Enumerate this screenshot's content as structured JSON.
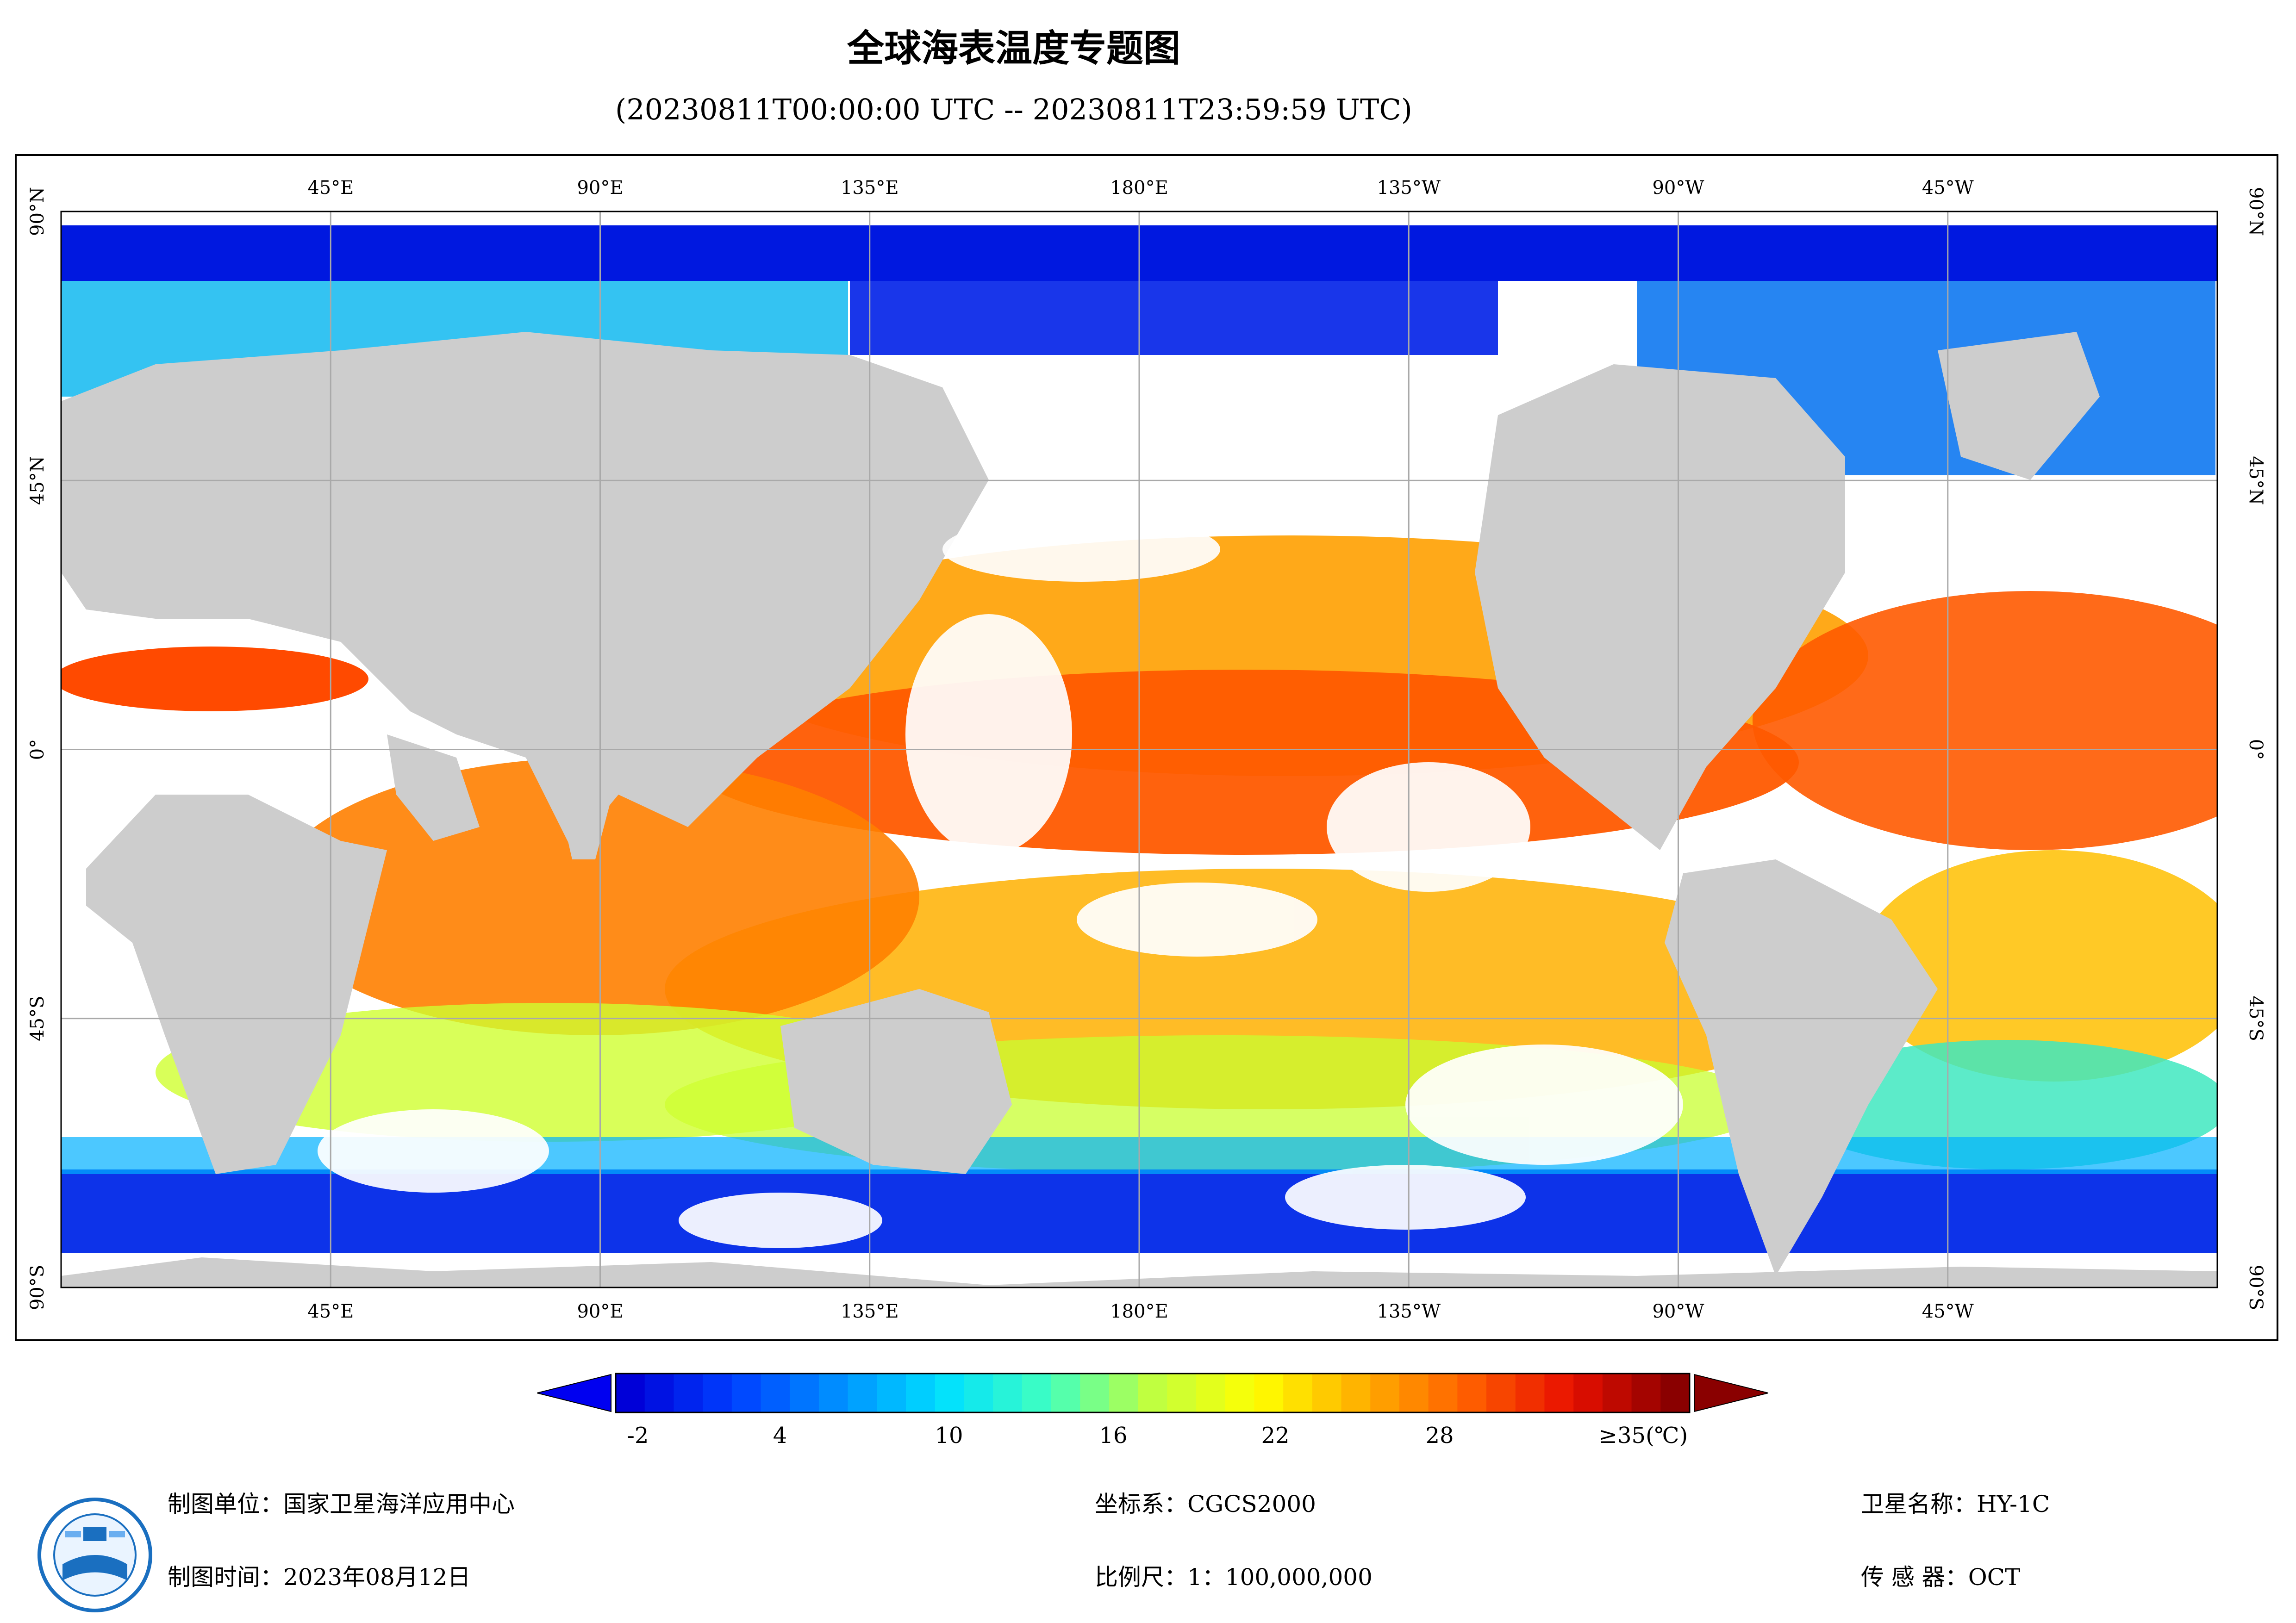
{
  "title": "全球海表温度专题图",
  "subtitle": "(20230811T00:00:00 UTC -- 20230811T23:59:59 UTC)",
  "map": {
    "top_labels": [
      "45°E",
      "90°E",
      "135°E",
      "180°E",
      "135°W",
      "90°W",
      "45°W"
    ],
    "bottom_labels": [
      "45°E",
      "90°E",
      "135°E",
      "180°E",
      "135°W",
      "90°W",
      "45°W"
    ],
    "lat_labels": [
      "90°N",
      "45°N",
      "0°",
      "45°S",
      "90°S"
    ],
    "colors": {
      "land": "#cdcdcd",
      "cloud": "#ffffff",
      "grid": "#a9a9a9"
    }
  },
  "colorbar": {
    "ticks": [
      {
        "label": "-2"
      },
      {
        "label": "4"
      },
      {
        "label": "10"
      },
      {
        "label": "16"
      },
      {
        "label": "22"
      },
      {
        "label": "28"
      }
    ],
    "max_label": "≥35(℃)",
    "min_value": -2,
    "max_value": 35,
    "colors": [
      "#0000d8",
      "#0040ff",
      "#0090ff",
      "#00e0ff",
      "#40ffc0",
      "#c0ff40",
      "#ffff00",
      "#ffb000",
      "#ff6000",
      "#e81000",
      "#8a0000"
    ]
  },
  "meta": {
    "unit": "制图单位：国家卫星海洋应用中心",
    "time": "制图时间：2023年08月12日",
    "coord": "坐标系：CGCS2000",
    "scale": "比例尺：1：100,000,000",
    "satellite": "卫星名称：HY-1C",
    "sensor": "传 感 器：OCT"
  },
  "logo": {
    "icon": "nsoas-logo-icon"
  }
}
